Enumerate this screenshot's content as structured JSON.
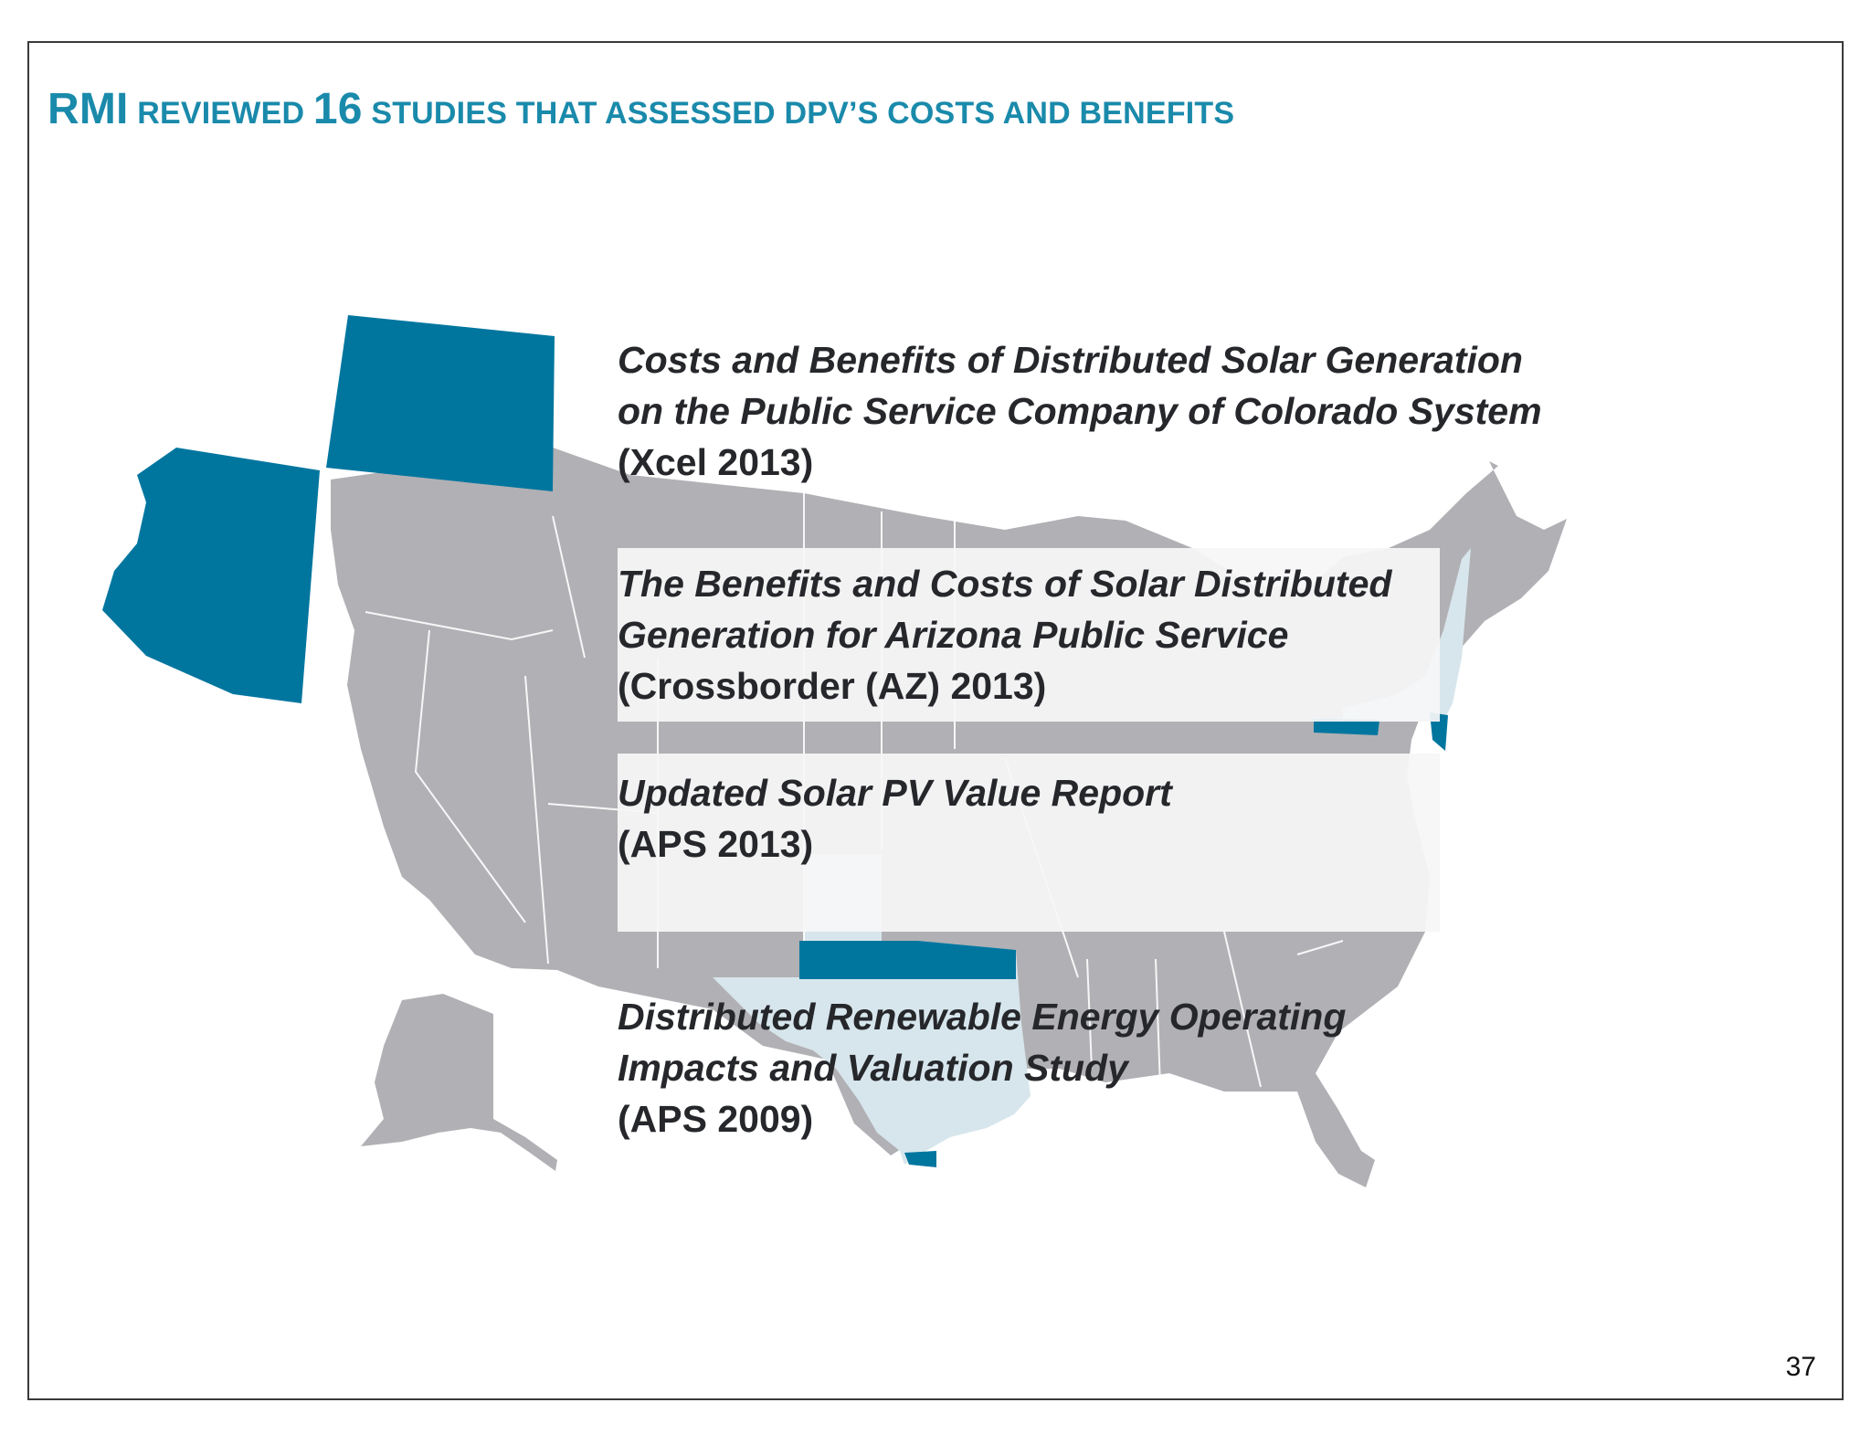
{
  "slide": {
    "title": {
      "rmi": "RMI",
      "reviewed": "REVIEWED",
      "count": "16",
      "rest": "STUDIES THAT ASSESSED DPV’S COSTS AND BENEFITS"
    },
    "page_number": "37"
  },
  "colors": {
    "title": "#1a8aab",
    "highlight_state": "#00769f",
    "light_state": "#d7e6ec",
    "base_state": "#b1b0b4",
    "band": "#f4f4f5",
    "text": "#25272b"
  },
  "studies": [
    {
      "name_lines": [
        "Costs and Benefits of Distributed Solar Generation",
        "on the Public Service Company of Colorado System"
      ],
      "citation": "(Xcel 2013)"
    },
    {
      "name_lines": [
        "The Benefits and Costs of Solar Distributed",
        "Generation for Arizona Public Service"
      ],
      "citation": "(Crossborder (AZ) 2013)"
    },
    {
      "name_lines": [
        "Updated Solar PV Value Report"
      ],
      "citation": "(APS 2013)"
    },
    {
      "name_lines": [
        "Distributed Renewable Energy Operating",
        "Impacts and Valuation Study"
      ],
      "citation": "(APS 2009)"
    }
  ]
}
